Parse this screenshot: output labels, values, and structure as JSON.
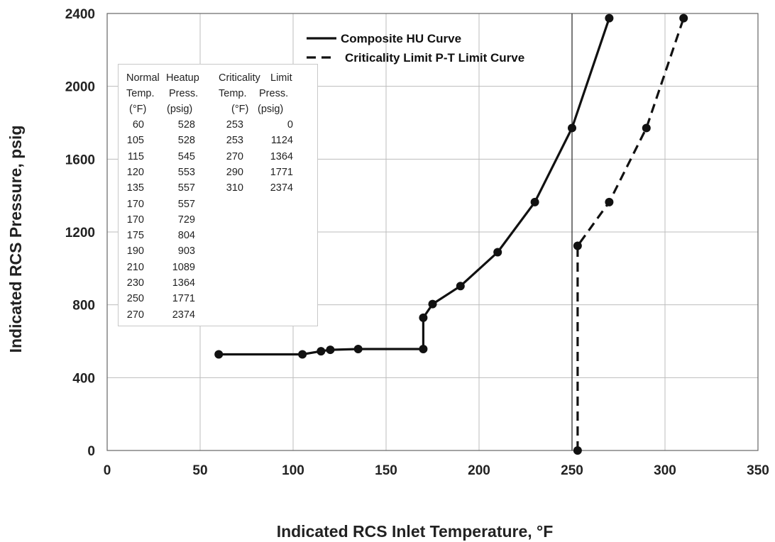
{
  "chart_data": {
    "type": "line",
    "xlabel": "Indicated RCS Inlet Temperature, °F",
    "ylabel": "Indicated RCS Pressure, psig",
    "xlim": [
      0,
      350
    ],
    "ylim": [
      0,
      2400
    ],
    "x_ticks": [
      "0",
      "50",
      "100",
      "150",
      "200",
      "250",
      "300",
      "350"
    ],
    "y_ticks": [
      "0",
      "400",
      "800",
      "1200",
      "1600",
      "2000",
      "2400"
    ],
    "grid": true,
    "legend_placement": "top-right",
    "reference_line_x": 250,
    "series": [
      {
        "name": "Composite HU Curve",
        "style": "solid",
        "color": "#111111",
        "points": [
          [
            60,
            528
          ],
          [
            105,
            528
          ],
          [
            115,
            545
          ],
          [
            120,
            553
          ],
          [
            135,
            557
          ],
          [
            170,
            557
          ],
          [
            170,
            729
          ],
          [
            175,
            804
          ],
          [
            190,
            903
          ],
          [
            210,
            1089
          ],
          [
            230,
            1364
          ],
          [
            250,
            1771
          ],
          [
            270,
            2374
          ]
        ]
      },
      {
        "name": "Criticality Limit P-T Limit Curve",
        "style": "dashed",
        "color": "#111111",
        "points": [
          [
            253,
            0
          ],
          [
            253,
            1124
          ],
          [
            270,
            1364
          ],
          [
            290,
            1771
          ],
          [
            310,
            2374
          ]
        ]
      }
    ],
    "table": {
      "heatup": {
        "header": [
          "Normal",
          "Heatup"
        ],
        "col_labels": [
          "Temp.",
          "Press."
        ],
        "units": [
          "(°F)",
          "(psig)"
        ],
        "rows": [
          [
            "60",
            "528"
          ],
          [
            "105",
            "528"
          ],
          [
            "115",
            "545"
          ],
          [
            "120",
            "553"
          ],
          [
            "135",
            "557"
          ],
          [
            "170",
            "557"
          ],
          [
            "170",
            "729"
          ],
          [
            "175",
            "804"
          ],
          [
            "190",
            "903"
          ],
          [
            "210",
            "1089"
          ],
          [
            "230",
            "1364"
          ],
          [
            "250",
            "1771"
          ],
          [
            "270",
            "2374"
          ]
        ]
      },
      "criticality": {
        "header": [
          "Criticality",
          "Limit"
        ],
        "col_labels": [
          "Temp.",
          "Press."
        ],
        "units": [
          "(°F)",
          "(psig)"
        ],
        "rows": [
          [
            "253",
            "0"
          ],
          [
            "253",
            "1124"
          ],
          [
            "270",
            "1364"
          ],
          [
            "290",
            "1771"
          ],
          [
            "310",
            "2374"
          ]
        ]
      }
    }
  }
}
